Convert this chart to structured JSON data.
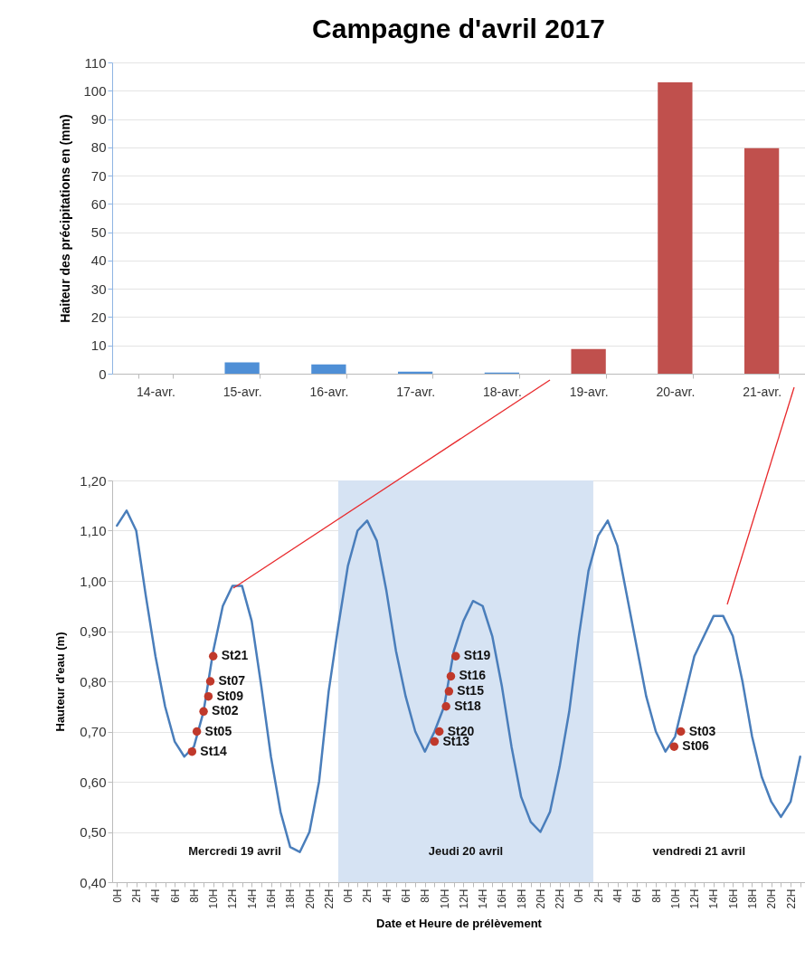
{
  "chart_data": [
    {
      "type": "bar",
      "title": "Campagne d'avril 2017",
      "ylabel": "Haiteur des précipitations en (mm)",
      "categories": [
        "14-avr.",
        "15-avr.",
        "16-avr.",
        "17-avr.",
        "18-avr.",
        "19-avr.",
        "20-avr.",
        "21-avr."
      ],
      "values": [
        0,
        4,
        3.3,
        0.7,
        0.4,
        8.7,
        103,
        79.7
      ],
      "colors": [
        "#4f8fd6",
        "#4f8fd6",
        "#4f8fd6",
        "#4f8fd6",
        "#4f8fd6",
        "#c0504d",
        "#c0504d",
        "#c0504d"
      ],
      "ylim": [
        0,
        110
      ],
      "yticks": [
        0,
        10,
        20,
        30,
        40,
        50,
        60,
        70,
        80,
        90,
        100,
        110
      ],
      "grid": "y"
    },
    {
      "type": "line",
      "xlabel": "Date et Heure de prélèvement",
      "ylabel": "Hauteur d'eau (m)",
      "xlim": [
        "2017-04-18T23:30",
        "2017-04-21T23:30"
      ],
      "xticks": [
        {
          "value": "2017-04-19T00:00",
          "label": "0H"
        },
        {
          "value": "2017-04-19T01:00",
          "label": null
        },
        {
          "value": "2017-04-19T02:00",
          "label": "2H"
        },
        {
          "value": "2017-04-19T03:00",
          "label": null
        },
        {
          "value": "2017-04-19T04:00",
          "label": "4H"
        },
        {
          "value": "2017-04-19T05:00",
          "label": null
        },
        {
          "value": "2017-04-19T06:00",
          "label": "6H"
        },
        {
          "value": "2017-04-19T07:00",
          "label": null
        },
        {
          "value": "2017-04-19T08:00",
          "label": "8H"
        },
        {
          "value": "2017-04-19T09:00",
          "label": null
        },
        {
          "value": "2017-04-19T10:00",
          "label": "10H"
        },
        {
          "value": "2017-04-19T11:00",
          "label": null
        },
        {
          "value": "2017-04-19T12:00",
          "label": "12H"
        },
        {
          "value": "2017-04-19T13:00",
          "label": null
        },
        {
          "value": "2017-04-19T14:00",
          "label": "14H"
        },
        {
          "value": "2017-04-19T15:00",
          "label": null
        },
        {
          "value": "2017-04-19T16:00",
          "label": "16H"
        },
        {
          "value": "2017-04-19T17:00",
          "label": null
        },
        {
          "value": "2017-04-19T18:00",
          "label": "18H"
        },
        {
          "value": "2017-04-19T19:00",
          "label": null
        },
        {
          "value": "2017-04-19T20:00",
          "label": "20H"
        },
        {
          "value": "2017-04-19T21:00",
          "label": null
        },
        {
          "value": "2017-04-19T22:00",
          "label": "22H"
        },
        {
          "value": "2017-04-19T23:00",
          "label": null
        },
        {
          "value": "2017-04-20T00:00",
          "label": "0H"
        },
        {
          "value": "2017-04-20T01:00",
          "label": null
        },
        {
          "value": "2017-04-20T02:00",
          "label": "2H"
        },
        {
          "value": "2017-04-20T03:00",
          "label": null
        },
        {
          "value": "2017-04-20T04:00",
          "label": "4H"
        },
        {
          "value": "2017-04-20T05:00",
          "label": null
        },
        {
          "value": "2017-04-20T06:00",
          "label": "6H"
        },
        {
          "value": "2017-04-20T07:00",
          "label": null
        },
        {
          "value": "2017-04-20T08:00",
          "label": "8H"
        },
        {
          "value": "2017-04-20T09:00",
          "label": null
        },
        {
          "value": "2017-04-20T10:00",
          "label": "10H"
        },
        {
          "value": "2017-04-20T11:00",
          "label": null
        },
        {
          "value": "2017-04-20T12:00",
          "label": "12H"
        },
        {
          "value": "2017-04-20T13:00",
          "label": null
        },
        {
          "value": "2017-04-20T14:00",
          "label": "14H"
        },
        {
          "value": "2017-04-20T15:00",
          "label": null
        },
        {
          "value": "2017-04-20T16:00",
          "label": "16H"
        },
        {
          "value": "2017-04-20T17:00",
          "label": null
        },
        {
          "value": "2017-04-20T18:00",
          "label": "18H"
        },
        {
          "value": "2017-04-20T19:00",
          "label": null
        },
        {
          "value": "2017-04-20T20:00",
          "label": "20H"
        },
        {
          "value": "2017-04-20T21:00",
          "label": null
        },
        {
          "value": "2017-04-20T22:00",
          "label": "22H"
        },
        {
          "value": "2017-04-20T23:00",
          "label": null
        },
        {
          "value": "2017-04-21T00:00",
          "label": "0H"
        },
        {
          "value": "2017-04-21T01:00",
          "label": null
        },
        {
          "value": "2017-04-21T02:00",
          "label": "2H"
        },
        {
          "value": "2017-04-21T03:00",
          "label": null
        },
        {
          "value": "2017-04-21T04:00",
          "label": "4H"
        },
        {
          "value": "2017-04-21T05:00",
          "label": null
        },
        {
          "value": "2017-04-21T06:00",
          "label": "6H"
        },
        {
          "value": "2017-04-21T07:00",
          "label": null
        },
        {
          "value": "2017-04-21T08:00",
          "label": "8H"
        },
        {
          "value": "2017-04-21T09:00",
          "label": null
        },
        {
          "value": "2017-04-21T10:00",
          "label": "10H"
        },
        {
          "value": "2017-04-21T11:00",
          "label": null
        },
        {
          "value": "2017-04-21T12:00",
          "label": "12H"
        },
        {
          "value": "2017-04-21T13:00",
          "label": null
        },
        {
          "value": "2017-04-21T14:00",
          "label": "14H"
        },
        {
          "value": "2017-04-21T15:00",
          "label": null
        },
        {
          "value": "2017-04-21T16:00",
          "label": "16H"
        },
        {
          "value": "2017-04-21T17:00",
          "label": null
        },
        {
          "value": "2017-04-21T18:00",
          "label": "18H"
        },
        {
          "value": "2017-04-21T19:00",
          "label": null
        },
        {
          "value": "2017-04-21T20:00",
          "label": "20H"
        },
        {
          "value": "2017-04-21T21:00",
          "label": null
        },
        {
          "value": "2017-04-21T22:00",
          "label": "22H"
        },
        {
          "value": "2017-04-21T23:00",
          "label": null
        }
      ],
      "ylim": [
        0.4,
        1.2
      ],
      "yticks": [
        {
          "value": 0.4,
          "label": "0,40"
        },
        {
          "value": 0.5,
          "label": "0,50"
        },
        {
          "value": 0.6,
          "label": "0,60"
        },
        {
          "value": 0.7,
          "label": "0,70"
        },
        {
          "value": 0.8,
          "label": "0,80"
        },
        {
          "value": 0.9,
          "label": "0,90"
        },
        {
          "value": 1.0,
          "label": "1,00"
        },
        {
          "value": 1.1,
          "label": "1,10"
        },
        {
          "value": 1.2,
          "label": "1,20"
        }
      ],
      "grid": "y",
      "series": [
        {
          "type": "line",
          "color": "#4a7ebb",
          "x": [
            "2017-04-19T00:00",
            "2017-04-19T01:00",
            "2017-04-19T02:00",
            "2017-04-19T03:00",
            "2017-04-19T04:00",
            "2017-04-19T05:00",
            "2017-04-19T06:00",
            "2017-04-19T07:00",
            "2017-04-19T08:00",
            "2017-04-19T09:00",
            "2017-04-19T10:00",
            "2017-04-19T11:00",
            "2017-04-19T12:00",
            "2017-04-19T13:00",
            "2017-04-19T14:00",
            "2017-04-19T15:00",
            "2017-04-19T16:00",
            "2017-04-19T17:00",
            "2017-04-19T18:00",
            "2017-04-19T19:00",
            "2017-04-19T20:00",
            "2017-04-19T21:00",
            "2017-04-19T22:00",
            "2017-04-19T23:00",
            "2017-04-20T00:00",
            "2017-04-20T01:00",
            "2017-04-20T02:00",
            "2017-04-20T03:00",
            "2017-04-20T04:00",
            "2017-04-20T05:00",
            "2017-04-20T06:00",
            "2017-04-20T07:00",
            "2017-04-20T08:00",
            "2017-04-20T09:00",
            "2017-04-20T10:00",
            "2017-04-20T11:00",
            "2017-04-20T12:00",
            "2017-04-20T13:00",
            "2017-04-20T14:00",
            "2017-04-20T15:00",
            "2017-04-20T16:00",
            "2017-04-20T17:00",
            "2017-04-20T18:00",
            "2017-04-20T19:00",
            "2017-04-20T20:00",
            "2017-04-20T21:00",
            "2017-04-20T22:00",
            "2017-04-20T23:00",
            "2017-04-21T00:00",
            "2017-04-21T01:00",
            "2017-04-21T02:00",
            "2017-04-21T03:00",
            "2017-04-21T04:00",
            "2017-04-21T05:00",
            "2017-04-21T06:00",
            "2017-04-21T07:00",
            "2017-04-21T08:00",
            "2017-04-21T09:00",
            "2017-04-21T10:00",
            "2017-04-21T11:00",
            "2017-04-21T12:00",
            "2017-04-21T13:00",
            "2017-04-21T14:00",
            "2017-04-21T15:00",
            "2017-04-21T16:00",
            "2017-04-21T17:00",
            "2017-04-21T18:00",
            "2017-04-21T19:00",
            "2017-04-21T20:00",
            "2017-04-21T21:00",
            "2017-04-21T22:00",
            "2017-04-21T23:00"
          ],
          "values": [
            1.11,
            1.14,
            1.1,
            0.97,
            0.85,
            0.75,
            0.68,
            0.65,
            0.67,
            0.74,
            0.86,
            0.95,
            0.99,
            0.99,
            0.92,
            0.79,
            0.65,
            0.54,
            0.47,
            0.46,
            0.5,
            0.6,
            0.78,
            0.91,
            1.03,
            1.1,
            1.12,
            1.08,
            0.98,
            0.86,
            0.77,
            0.7,
            0.66,
            0.7,
            0.75,
            0.86,
            0.92,
            0.96,
            0.95,
            0.89,
            0.79,
            0.67,
            0.57,
            0.52,
            0.5,
            0.54,
            0.63,
            0.74,
            0.89,
            1.02,
            1.09,
            1.12,
            1.07,
            0.97,
            0.87,
            0.77,
            0.7,
            0.66,
            0.69,
            0.77,
            0.85,
            0.89,
            0.93,
            0.93,
            0.89,
            0.8,
            0.69,
            0.61,
            0.56,
            0.53,
            0.56,
            0.65
          ]
        },
        {
          "type": "scatter",
          "color": "#c0392b",
          "marker": "circle",
          "x": [
            "2017-04-19T07:48",
            "2017-04-19T08:18",
            "2017-04-19T09:00",
            "2017-04-19T09:30",
            "2017-04-19T09:42",
            "2017-04-19T10:00",
            "2017-04-20T09:00",
            "2017-04-20T09:30",
            "2017-04-20T10:12",
            "2017-04-20T10:30",
            "2017-04-20T10:42",
            "2017-04-20T11:12",
            "2017-04-21T09:54",
            "2017-04-21T10:36"
          ],
          "values": [
            0.66,
            0.7,
            0.74,
            0.77,
            0.8,
            0.85,
            0.68,
            0.7,
            0.75,
            0.78,
            0.81,
            0.85,
            0.67,
            0.7
          ]
        }
      ],
      "bands": [
        {
          "axis": "x",
          "from": "2017-04-19T23:00",
          "to": "2017-04-21T01:30",
          "label": "Jeudi 20 avril",
          "color": "#d6e3f3"
        }
      ],
      "annotations": [
        {
          "text": "St14",
          "x": "2017-04-19T07:48",
          "y": 0.66
        },
        {
          "text": "St05",
          "x": "2017-04-19T08:18",
          "y": 0.7
        },
        {
          "text": "St02",
          "x": "2017-04-19T09:00",
          "y": 0.74
        },
        {
          "text": "St09",
          "x": "2017-04-19T09:30",
          "y": 0.77
        },
        {
          "text": "St07",
          "x": "2017-04-19T09:42",
          "y": 0.8
        },
        {
          "text": "St21",
          "x": "2017-04-19T10:00",
          "y": 0.85
        },
        {
          "text": "St13",
          "x": "2017-04-20T09:00",
          "y": 0.68
        },
        {
          "text": "St20",
          "x": "2017-04-20T09:30",
          "y": 0.7
        },
        {
          "text": "St18",
          "x": "2017-04-20T10:12",
          "y": 0.75
        },
        {
          "text": "St15",
          "x": "2017-04-20T10:30",
          "y": 0.78
        },
        {
          "text": "St16",
          "x": "2017-04-20T10:42",
          "y": 0.81
        },
        {
          "text": "St19",
          "x": "2017-04-20T11:12",
          "y": 0.85
        },
        {
          "text": "St06",
          "x": "2017-04-21T09:54",
          "y": 0.67
        },
        {
          "text": "St03",
          "x": "2017-04-21T10:36",
          "y": 0.7
        },
        "Mercredi 19 avril",
        "vendredi 21  avril"
      ]
    }
  ]
}
